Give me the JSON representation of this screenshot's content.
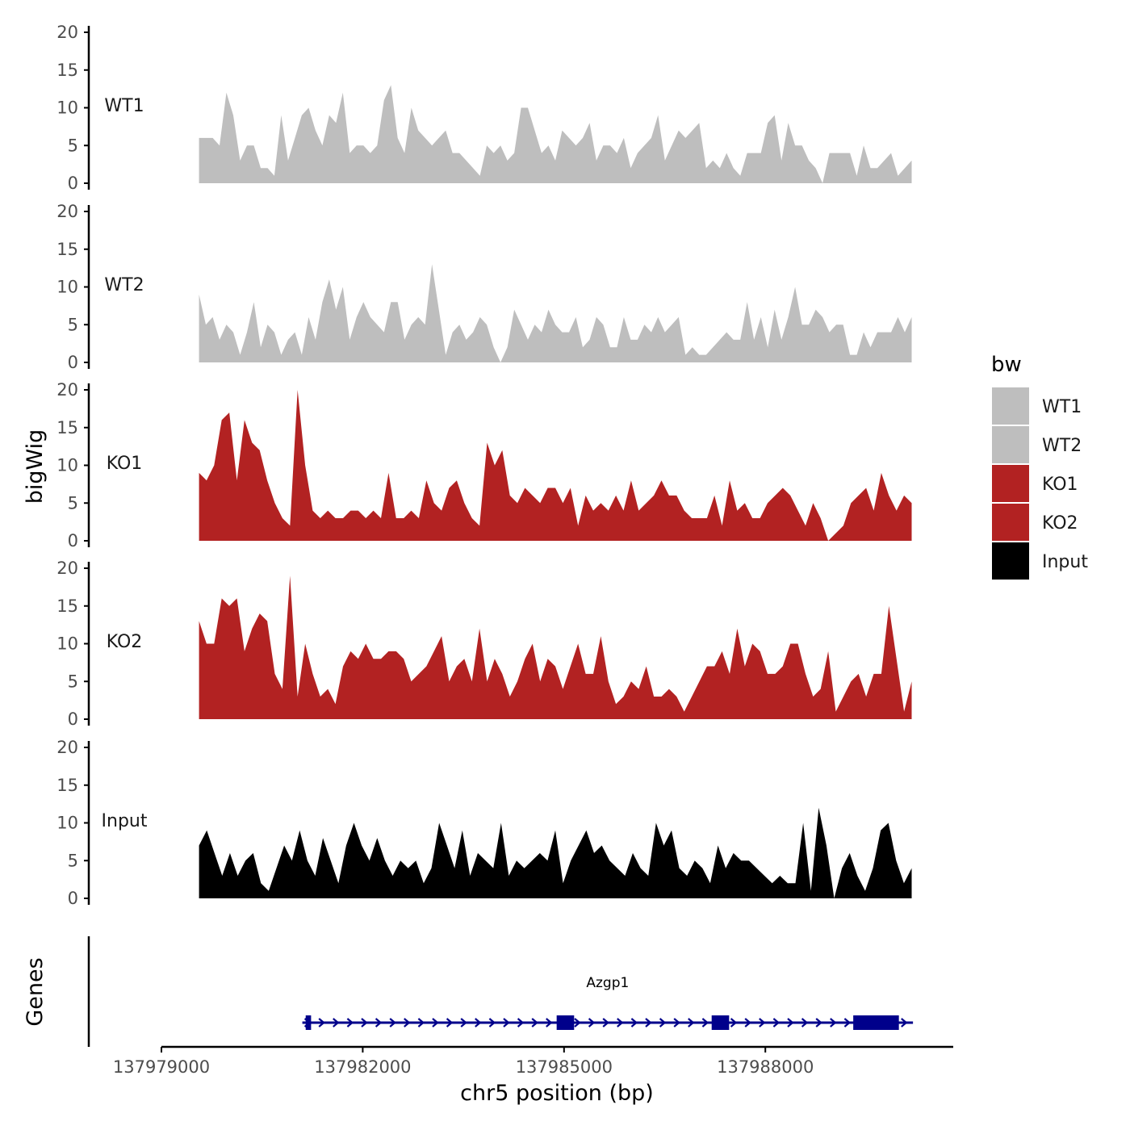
{
  "chart_data": {
    "type": "area",
    "ylabel": "bigWig",
    "xlabel": "chr5 position (bp)",
    "ylim": [
      0,
      20
    ],
    "y_ticks": [
      "0",
      "5",
      "10",
      "15",
      "20"
    ],
    "xlim": [
      137979000,
      137990800
    ],
    "x_ticks": [
      {
        "value": 137979000,
        "label": "137979000"
      },
      {
        "value": 137982000,
        "label": "137982000"
      },
      {
        "value": 137985000,
        "label": "137985000"
      },
      {
        "value": 137988000,
        "label": "137988000"
      }
    ],
    "x_start": 137979560,
    "x_end": 137990180,
    "legend": {
      "title": "bw",
      "position": "right"
    },
    "tracks": [
      {
        "name": "WT1",
        "label": "WT1",
        "color": "#bebebe",
        "values": [
          6,
          6,
          6,
          5,
          12,
          9,
          3,
          5,
          5,
          2,
          2,
          1,
          9,
          3,
          6,
          9,
          10,
          7,
          5,
          9,
          8,
          12,
          4,
          5,
          5,
          4,
          5,
          11,
          13,
          6,
          4,
          10,
          7,
          6,
          5,
          6,
          7,
          4,
          4,
          3,
          2,
          1,
          5,
          4,
          5,
          3,
          4,
          10,
          10,
          7,
          4,
          5,
          3,
          7,
          6,
          5,
          6,
          8,
          3,
          5,
          5,
          4,
          6,
          2,
          4,
          5,
          6,
          9,
          3,
          5,
          7,
          6,
          7,
          8,
          2,
          3,
          2,
          4,
          2,
          1,
          4,
          4,
          4,
          8,
          9,
          3,
          8,
          5,
          5,
          3,
          2,
          0,
          4,
          4,
          4,
          4,
          1,
          5,
          2,
          2,
          3,
          4,
          1,
          2,
          3
        ]
      },
      {
        "name": "WT2",
        "label": "WT2",
        "color": "#bebebe",
        "values": [
          9,
          5,
          6,
          3,
          5,
          4,
          1,
          4,
          8,
          2,
          5,
          4,
          1,
          3,
          4,
          1,
          6,
          3,
          8,
          11,
          7,
          10,
          3,
          6,
          8,
          6,
          5,
          4,
          8,
          8,
          3,
          5,
          6,
          5,
          13,
          7,
          1,
          4,
          5,
          3,
          4,
          6,
          5,
          2,
          0,
          2,
          7,
          5,
          3,
          5,
          4,
          7,
          5,
          4,
          4,
          6,
          2,
          3,
          6,
          5,
          2,
          2,
          6,
          3,
          3,
          5,
          4,
          6,
          4,
          5,
          6,
          1,
          2,
          1,
          1,
          2,
          3,
          4,
          3,
          3,
          8,
          3,
          6,
          2,
          7,
          3,
          6,
          10,
          5,
          5,
          7,
          6,
          4,
          5,
          5,
          1,
          1,
          4,
          2,
          4,
          4,
          4,
          6,
          4,
          6
        ]
      },
      {
        "name": "KO1",
        "label": "KO1",
        "color": "#b22222",
        "values": [
          9,
          8,
          10,
          16,
          17,
          8,
          16,
          13,
          12,
          8,
          5,
          3,
          2,
          20,
          10,
          4,
          3,
          4,
          3,
          3,
          4,
          4,
          3,
          4,
          3,
          9,
          3,
          3,
          4,
          3,
          8,
          5,
          4,
          7,
          8,
          5,
          3,
          2,
          13,
          10,
          12,
          6,
          5,
          7,
          6,
          5,
          7,
          7,
          5,
          7,
          2,
          6,
          4,
          5,
          4,
          6,
          4,
          8,
          4,
          5,
          6,
          8,
          6,
          6,
          4,
          3,
          3,
          3,
          6,
          2,
          8,
          4,
          5,
          3,
          3,
          5,
          6,
          7,
          6,
          4,
          2,
          5,
          3,
          0,
          1,
          2,
          5,
          6,
          7,
          4,
          9,
          6,
          4,
          6,
          5
        ]
      },
      {
        "name": "KO2",
        "label": "KO2",
        "color": "#b22222",
        "values": [
          13,
          10,
          10,
          16,
          15,
          16,
          9,
          12,
          14,
          13,
          6,
          4,
          19,
          3,
          10,
          6,
          3,
          4,
          2,
          7,
          9,
          8,
          10,
          8,
          8,
          9,
          9,
          8,
          5,
          6,
          7,
          9,
          11,
          5,
          7,
          8,
          5,
          12,
          5,
          8,
          6,
          3,
          5,
          8,
          10,
          5,
          8,
          7,
          4,
          7,
          10,
          6,
          6,
          11,
          5,
          2,
          3,
          5,
          4,
          7,
          3,
          3,
          4,
          3,
          1,
          3,
          5,
          7,
          7,
          9,
          6,
          12,
          7,
          10,
          9,
          6,
          6,
          7,
          10,
          10,
          6,
          3,
          4,
          9,
          1,
          3,
          5,
          6,
          3,
          6,
          6,
          15,
          8,
          1,
          5
        ]
      },
      {
        "name": "Input",
        "label": "Input",
        "color": "#000000",
        "values": [
          7,
          9,
          6,
          3,
          6,
          3,
          5,
          6,
          2,
          1,
          4,
          7,
          5,
          9,
          5,
          3,
          8,
          5,
          2,
          7,
          10,
          7,
          5,
          8,
          5,
          3,
          5,
          4,
          5,
          2,
          4,
          10,
          7,
          4,
          9,
          3,
          6,
          5,
          4,
          10,
          3,
          5,
          4,
          5,
          6,
          5,
          9,
          2,
          5,
          7,
          9,
          6,
          7,
          5,
          4,
          3,
          6,
          4,
          3,
          10,
          7,
          9,
          4,
          3,
          5,
          4,
          2,
          7,
          4,
          6,
          5,
          5,
          4,
          3,
          2,
          3,
          2,
          2,
          10,
          1,
          12,
          7,
          0,
          4,
          6,
          3,
          1,
          4,
          9,
          10,
          5,
          2,
          4
        ]
      }
    ],
    "genes_track": {
      "label": "Genes",
      "gene": {
        "name": "Azgp1",
        "start": 137981100,
        "end": 137990200,
        "strand": "+"
      },
      "exons": [
        {
          "start": 137981150,
          "end": 137981230
        },
        {
          "start": 137984890,
          "end": 137985150
        },
        {
          "start": 137987200,
          "end": 137987460
        },
        {
          "start": 137989310,
          "end": 137989990
        }
      ],
      "color": "#00008b"
    }
  }
}
